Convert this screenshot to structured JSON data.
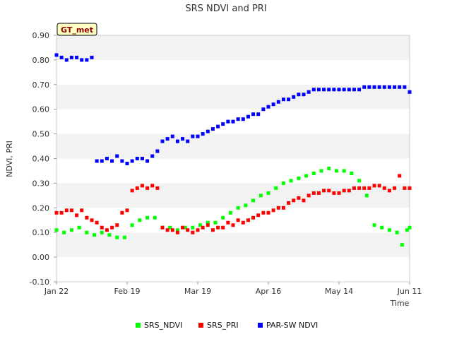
{
  "chart_data": {
    "type": "scatter",
    "title": "SRS NDVI and PRI",
    "badge": "GT_met",
    "xlabel": "Time",
    "ylabel": "NDVI, PRI",
    "ylim": [
      -0.1,
      0.9
    ],
    "yticks": [
      -0.1,
      0.0,
      0.1,
      0.2,
      0.3,
      0.4,
      0.5,
      0.6,
      0.7,
      0.8,
      0.9
    ],
    "ytick_labels": [
      "-0.10",
      "0.00",
      "0.10",
      "0.20",
      "0.30",
      "0.40",
      "0.50",
      "0.60",
      "0.70",
      "0.80",
      "0.90"
    ],
    "xlim_days": [
      0,
      140
    ],
    "xticks_days": [
      0,
      28,
      56,
      84,
      112,
      140
    ],
    "xtick_labels": [
      "Jan 22",
      "Feb 19",
      "Mar 19",
      "Apr 16",
      "May 14",
      "Jun 11"
    ],
    "grid": "horizontal bands",
    "legend_position": "bottom",
    "series": [
      {
        "name": "SRS_NDVI",
        "color": "#00ff00",
        "day": [
          0,
          3,
          6,
          9,
          12,
          15,
          18,
          21,
          24,
          27,
          30,
          33,
          36,
          39,
          42,
          45,
          48,
          51,
          54,
          57,
          60,
          63,
          66,
          69,
          72,
          75,
          78,
          81,
          84,
          87,
          90,
          93,
          96,
          99,
          102,
          105,
          108,
          111,
          114,
          117,
          120,
          123,
          126,
          129,
          132,
          135,
          137,
          139,
          140
        ],
        "value": [
          0.11,
          0.1,
          0.11,
          0.12,
          0.1,
          0.09,
          0.1,
          0.09,
          0.08,
          0.08,
          0.13,
          0.15,
          0.16,
          0.16,
          0.12,
          0.12,
          0.11,
          0.12,
          0.12,
          0.13,
          0.14,
          0.14,
          0.16,
          0.18,
          0.2,
          0.21,
          0.23,
          0.25,
          0.26,
          0.28,
          0.3,
          0.31,
          0.32,
          0.33,
          0.34,
          0.35,
          0.36,
          0.35,
          0.35,
          0.34,
          0.31,
          0.25,
          0.13,
          0.12,
          0.11,
          0.1,
          0.05,
          0.11,
          0.12
        ]
      },
      {
        "name": "SRS_PRI",
        "color": "#ff0000",
        "day": [
          0,
          2,
          4,
          6,
          8,
          10,
          12,
          14,
          16,
          18,
          20,
          22,
          24,
          26,
          28,
          30,
          32,
          34,
          36,
          38,
          40,
          42,
          44,
          46,
          48,
          50,
          52,
          54,
          56,
          58,
          60,
          62,
          64,
          66,
          68,
          70,
          72,
          74,
          76,
          78,
          80,
          82,
          84,
          86,
          88,
          90,
          92,
          94,
          96,
          98,
          100,
          102,
          104,
          106,
          108,
          110,
          112,
          114,
          116,
          118,
          120,
          122,
          124,
          126,
          128,
          130,
          132,
          134,
          136,
          138,
          140
        ],
        "value": [
          0.18,
          0.18,
          0.19,
          0.19,
          0.17,
          0.19,
          0.16,
          0.15,
          0.14,
          0.12,
          0.11,
          0.12,
          0.13,
          0.18,
          0.19,
          0.27,
          0.28,
          0.29,
          0.28,
          0.29,
          0.28,
          0.12,
          0.11,
          0.11,
          0.1,
          0.12,
          0.11,
          0.1,
          0.11,
          0.12,
          0.13,
          0.11,
          0.12,
          0.12,
          0.14,
          0.13,
          0.15,
          0.14,
          0.15,
          0.16,
          0.17,
          0.18,
          0.18,
          0.19,
          0.2,
          0.2,
          0.22,
          0.23,
          0.24,
          0.23,
          0.25,
          0.26,
          0.26,
          0.27,
          0.27,
          0.26,
          0.26,
          0.27,
          0.27,
          0.28,
          0.28,
          0.28,
          0.28,
          0.29,
          0.29,
          0.28,
          0.27,
          0.28,
          0.33,
          0.28,
          0.28
        ]
      },
      {
        "name": "PAR-SW NDVI",
        "color": "#0000ff",
        "day": [
          0,
          2,
          4,
          6,
          8,
          10,
          12,
          14,
          16,
          18,
          20,
          22,
          24,
          26,
          28,
          30,
          32,
          34,
          36,
          38,
          40,
          42,
          44,
          46,
          48,
          50,
          52,
          54,
          56,
          58,
          60,
          62,
          64,
          66,
          68,
          70,
          72,
          74,
          76,
          78,
          80,
          82,
          84,
          86,
          88,
          90,
          92,
          94,
          96,
          98,
          100,
          102,
          104,
          106,
          108,
          110,
          112,
          114,
          116,
          118,
          120,
          122,
          124,
          126,
          128,
          130,
          132,
          134,
          136,
          138,
          140
        ],
        "value": [
          0.82,
          0.81,
          0.8,
          0.81,
          0.81,
          0.8,
          0.8,
          0.81,
          0.39,
          0.39,
          0.4,
          0.39,
          0.41,
          0.39,
          0.38,
          0.39,
          0.4,
          0.4,
          0.39,
          0.41,
          0.43,
          0.47,
          0.48,
          0.49,
          0.47,
          0.48,
          0.47,
          0.49,
          0.49,
          0.5,
          0.51,
          0.52,
          0.53,
          0.54,
          0.55,
          0.55,
          0.56,
          0.56,
          0.57,
          0.58,
          0.58,
          0.6,
          0.61,
          0.62,
          0.63,
          0.64,
          0.64,
          0.65,
          0.66,
          0.66,
          0.67,
          0.68,
          0.68,
          0.68,
          0.68,
          0.68,
          0.68,
          0.68,
          0.68,
          0.68,
          0.68,
          0.69,
          0.69,
          0.69,
          0.69,
          0.69,
          0.69,
          0.69,
          0.69,
          0.69,
          0.67
        ]
      }
    ]
  }
}
